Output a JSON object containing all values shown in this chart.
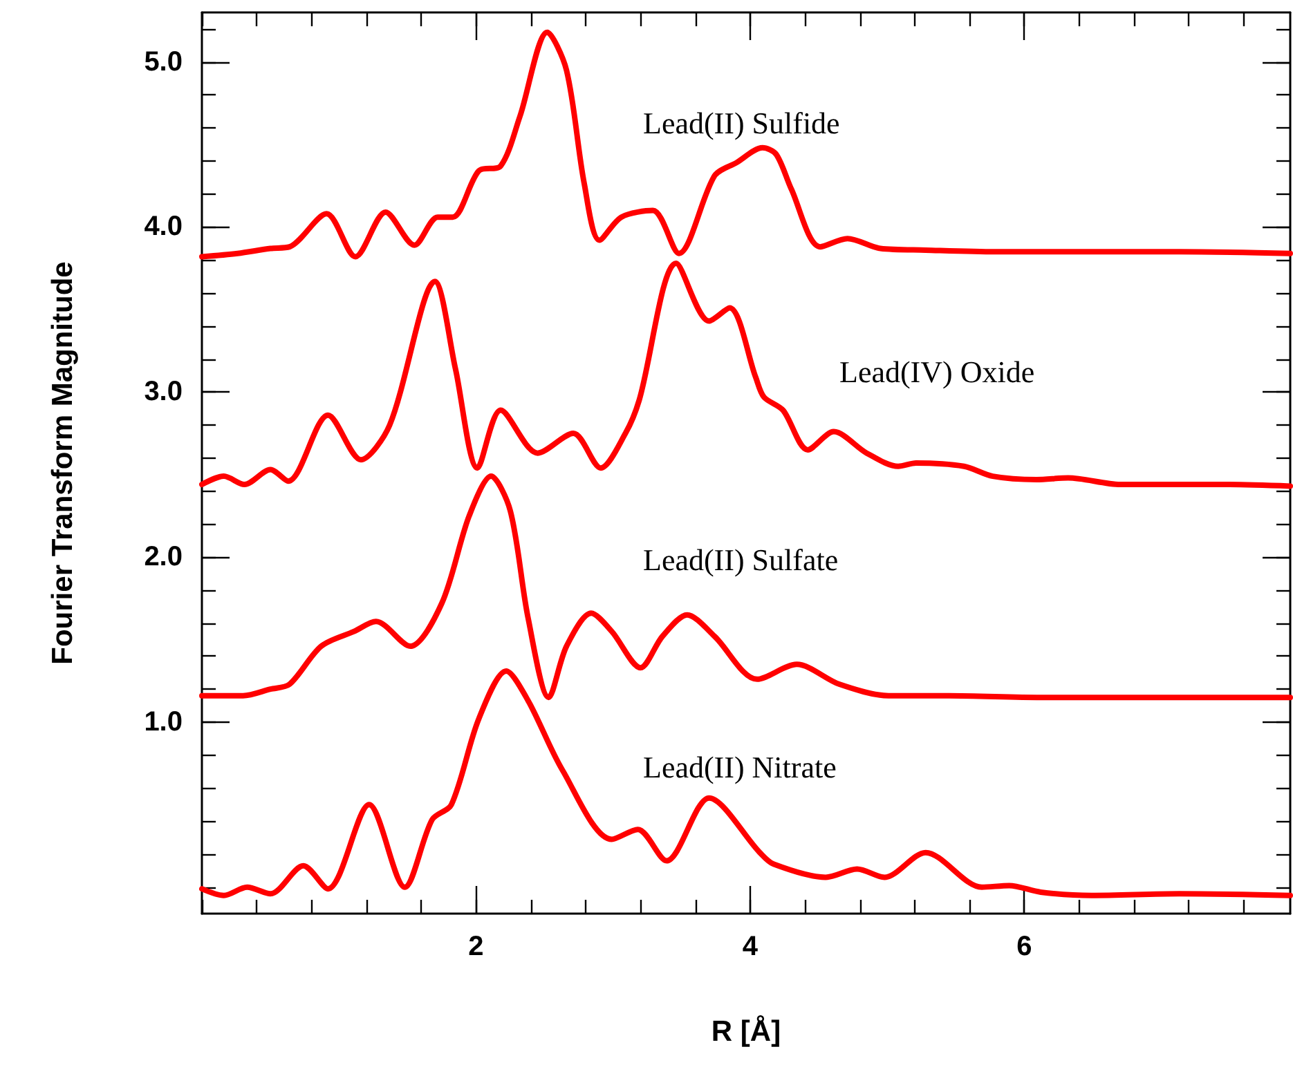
{
  "chart_data": {
    "type": "line",
    "xlabel": "R [Å]",
    "ylabel": "Fourier Transform Magnitude",
    "xlim": [
      0,
      7.94
    ],
    "ylim": [
      -0.16,
      5.3
    ],
    "xticks": [
      {
        "value": 0,
        "label": null
      },
      {
        "value": 0.4,
        "label": null
      },
      {
        "value": 0.8,
        "label": null
      },
      {
        "value": 1.2,
        "label": null
      },
      {
        "value": 1.6,
        "label": null
      },
      2,
      {
        "value": 2.4,
        "label": null
      },
      {
        "value": 2.8,
        "label": null
      },
      {
        "value": 3.2,
        "label": null
      },
      {
        "value": 3.6,
        "label": null
      },
      4,
      {
        "value": 4.4,
        "label": null
      },
      {
        "value": 4.8,
        "label": null
      },
      {
        "value": 5.2,
        "label": null
      },
      {
        "value": 5.6,
        "label": null
      },
      6,
      {
        "value": 6.4,
        "label": null
      },
      {
        "value": 6.8,
        "label": null
      },
      {
        "value": 7.2,
        "label": null
      },
      {
        "value": 7.6,
        "label": null
      }
    ],
    "yticks": [
      {
        "value": 0,
        "label": null
      },
      {
        "value": 0.2,
        "label": null
      },
      {
        "value": 0.4,
        "label": null
      },
      {
        "value": 0.6,
        "label": null
      },
      {
        "value": 0.8,
        "label": null
      },
      {
        "value": 1,
        "label": "1.0"
      },
      {
        "value": 1.2,
        "label": null
      },
      {
        "value": 1.4,
        "label": null
      },
      {
        "value": 1.6,
        "label": null
      },
      {
        "value": 1.8,
        "label": null
      },
      {
        "value": 2,
        "label": "2.0"
      },
      {
        "value": 2.2,
        "label": null
      },
      {
        "value": 2.4,
        "label": null
      },
      {
        "value": 2.6,
        "label": null
      },
      {
        "value": 2.8,
        "label": null
      },
      {
        "value": 3,
        "label": "3.0"
      },
      {
        "value": 3.2,
        "label": null
      },
      {
        "value": 3.4,
        "label": null
      },
      {
        "value": 3.6,
        "label": null
      },
      {
        "value": 3.8,
        "label": null
      },
      {
        "value": 4,
        "label": "4.0"
      },
      {
        "value": 4.2,
        "label": null
      },
      {
        "value": 4.4,
        "label": null
      },
      {
        "value": 4.6,
        "label": null
      },
      {
        "value": 4.8,
        "label": null
      },
      {
        "value": 5,
        "label": "5.0"
      },
      {
        "value": 5.2,
        "label": null
      }
    ],
    "grid": false,
    "legend": false,
    "marker": "none",
    "line_style": "solid",
    "series": [
      {
        "name": "Lead(II) Sulfide",
        "color": "#ff0000",
        "x": [
          0,
          0.26,
          0.5,
          0.64,
          0.91,
          1.12,
          1.34,
          1.55,
          1.72,
          1.83,
          2.02,
          2.18,
          2.32,
          2.52,
          2.66,
          2.79,
          2.9,
          3.06,
          3.29,
          3.48,
          3.74,
          3.9,
          4.09,
          4.19,
          4.3,
          4.51,
          4.71,
          4.95,
          5.28,
          5.79,
          6.46,
          7.13,
          7.94
        ],
        "values": [
          3.82,
          3.84,
          3.87,
          3.88,
          4.08,
          3.82,
          4.09,
          3.89,
          4.06,
          4.06,
          4.34,
          4.37,
          4.67,
          5.18,
          4.95,
          4.26,
          3.92,
          4.06,
          4.1,
          3.84,
          4.31,
          4.39,
          4.48,
          4.44,
          4.23,
          3.88,
          3.93,
          3.87,
          3.86,
          3.85,
          3.85,
          3.85,
          3.84
        ]
      },
      {
        "name": "Lead(IV) Oxide",
        "color": "#ff0000",
        "x": [
          0,
          0.16,
          0.31,
          0.5,
          0.63,
          0.92,
          1.16,
          1.37,
          1.7,
          1.85,
          2.01,
          2.18,
          2.45,
          2.71,
          2.91,
          3.09,
          3.19,
          3.46,
          3.7,
          3.85,
          4.04,
          4.1,
          4.24,
          4.42,
          4.61,
          4.85,
          5.08,
          5.21,
          5.56,
          5.77,
          6.09,
          6.32,
          6.7,
          7.03,
          7.47,
          7.94
        ],
        "values": [
          2.44,
          2.49,
          2.44,
          2.53,
          2.46,
          2.86,
          2.59,
          2.8,
          3.67,
          3.14,
          2.54,
          2.89,
          2.63,
          2.75,
          2.54,
          2.75,
          2.95,
          3.78,
          3.43,
          3.51,
          3.09,
          2.97,
          2.89,
          2.65,
          2.76,
          2.63,
          2.55,
          2.57,
          2.55,
          2.49,
          2.47,
          2.48,
          2.44,
          2.44,
          2.44,
          2.43
        ]
      },
      {
        "name": "Lead(II) Sulfate",
        "color": "#ff0000",
        "x": [
          0,
          0.3,
          0.5,
          0.64,
          0.87,
          1.11,
          1.27,
          1.52,
          1.75,
          1.95,
          2.11,
          2.25,
          2.38,
          2.53,
          2.66,
          2.84,
          2.99,
          3.2,
          3.36,
          3.54,
          3.74,
          4.05,
          4.34,
          4.65,
          5.01,
          5.45,
          6.12,
          6.8,
          7.94
        ],
        "values": [
          1.16,
          1.16,
          1.2,
          1.23,
          1.46,
          1.55,
          1.61,
          1.46,
          1.72,
          2.25,
          2.49,
          2.28,
          1.63,
          1.15,
          1.46,
          1.66,
          1.55,
          1.33,
          1.52,
          1.65,
          1.52,
          1.26,
          1.35,
          1.23,
          1.16,
          1.16,
          1.15,
          1.15,
          1.15
        ]
      },
      {
        "name": "Lead(II) Nitrate",
        "color": "#ff0000",
        "x": [
          0,
          0.16,
          0.33,
          0.5,
          0.74,
          0.92,
          1.22,
          1.48,
          1.68,
          1.82,
          2.02,
          2.22,
          2.38,
          2.63,
          2.99,
          3.18,
          3.39,
          3.7,
          4.07,
          4.17,
          4.55,
          4.78,
          4.98,
          5.28,
          5.69,
          5.89,
          6.12,
          6.49,
          7.13,
          7.94
        ],
        "values": [
          -0.01,
          -0.05,
          0,
          -0.04,
          0.13,
          -0.01,
          0.5,
          0,
          0.41,
          0.5,
          1.02,
          1.31,
          1.13,
          0.71,
          0.29,
          0.35,
          0.16,
          0.54,
          0.21,
          0.14,
          0.06,
          0.11,
          0.06,
          0.21,
          0,
          0.01,
          -0.03,
          -0.05,
          -0.04,
          -0.05
        ]
      }
    ]
  }
}
